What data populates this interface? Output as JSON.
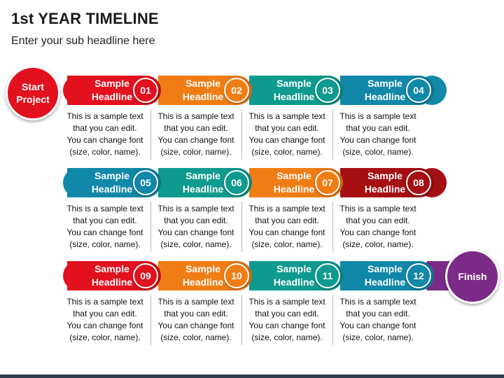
{
  "title": "1st YEAR TIMELINE",
  "subtitle": "Enter your sub headline here",
  "start_label": "Start Project",
  "finish_label": "Finish",
  "colors": {
    "red": "#e3101e",
    "orange": "#f07d14",
    "teal": "#0f9a8f",
    "blue": "#1188a8",
    "darkred": "#a50f12",
    "purple": "#7b2b87",
    "text": "#111111"
  },
  "rows": [
    {
      "steps": [
        {
          "headline": "Sample Headline",
          "num": "01",
          "color": "red",
          "desc": [
            "This is a sample text",
            "that you can edit.",
            "You can change font",
            "(size, color, name)."
          ]
        },
        {
          "headline": "Sample Headline",
          "num": "02",
          "color": "orange",
          "desc": [
            "This is a sample text",
            "that you can edit.",
            "You can change font",
            "(size, color, name)."
          ]
        },
        {
          "headline": "Sample Headline",
          "num": "03",
          "color": "teal",
          "desc": [
            "This is a sample text",
            "that you can edit.",
            "You can change font",
            "(size, color, name)."
          ]
        },
        {
          "headline": "Sample Headline",
          "num": "04",
          "color": "blue",
          "desc": [
            "This is a sample text",
            "that you can edit.",
            "You can change font",
            "(size, color, name)."
          ]
        }
      ]
    },
    {
      "steps": [
        {
          "headline": "Sample Headline",
          "num": "05",
          "color": "blue",
          "desc": [
            "This is a sample text",
            "that you can edit.",
            "You can change font",
            "(size, color, name)."
          ]
        },
        {
          "headline": "Sample Headline",
          "num": "06",
          "color": "teal",
          "desc": [
            "This is a sample text",
            "that you can edit.",
            "You can change font",
            "(size, color, name)."
          ]
        },
        {
          "headline": "Sample Headline",
          "num": "07",
          "color": "orange",
          "desc": [
            "This is a sample text",
            "that you can edit.",
            "You can change font",
            "(size, color, name)."
          ]
        },
        {
          "headline": "Sample Headline",
          "num": "08",
          "color": "darkred",
          "desc": [
            "This is a sample text",
            "that you can edit.",
            "You can change font",
            "(size, color, name)."
          ]
        }
      ]
    },
    {
      "steps": [
        {
          "headline": "Sample Headline",
          "num": "09",
          "color": "red",
          "desc": [
            "This is a sample text",
            "that you can edit.",
            "You can change font",
            "(size, color, name)."
          ]
        },
        {
          "headline": "Sample Headline",
          "num": "10",
          "color": "orange",
          "desc": [
            "This is a sample text",
            "that you can edit.",
            "You can change font",
            "(size, color, name)."
          ]
        },
        {
          "headline": "Sample Headline",
          "num": "11",
          "color": "teal",
          "desc": [
            "This is a sample text",
            "that you can edit.",
            "You can change font",
            "(size, color, name)."
          ]
        },
        {
          "headline": "Sample Headline",
          "num": "12",
          "color": "blue",
          "desc": [
            "This is a sample text",
            "that you can edit.",
            "You can change font",
            "(size, color, name)."
          ]
        }
      ]
    }
  ]
}
